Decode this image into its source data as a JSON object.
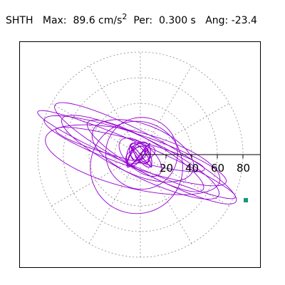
{
  "header": {
    "station": "SHTH",
    "max_label": "Max:",
    "max_value": "89.6 cm/s",
    "max_exp": "2",
    "per_label": "Per:",
    "per_value": "0.300 s",
    "ang_label": "Ang:",
    "ang_value": "-23.4"
  },
  "colors": {
    "trace": "#9400d3",
    "marker": "#109a7a",
    "grid": "#888888",
    "axis": "#000000"
  },
  "chart_data": {
    "type": "polar-hodogram",
    "title": "SHTH   Max:   89.6 cm/s2  Per:  0.300 s   Ang: -23.4",
    "radial_ticks": [
      20,
      40,
      60,
      80
    ],
    "tick_labels": [
      "20",
      "40",
      "60",
      "80"
    ],
    "rmax": 80,
    "grid": true,
    "angular_grid_step_deg": 30,
    "trace_loops": [
      {
        "ax": 84,
        "by": 9,
        "rot_deg": -23.4,
        "cx": -3,
        "cy": 0
      },
      {
        "ax": 75,
        "by": 13,
        "rot_deg": -19,
        "cx": -4,
        "cy": 3
      },
      {
        "ax": 68,
        "by": 15,
        "rot_deg": -26,
        "cx": 0,
        "cy": -2
      },
      {
        "ax": 60,
        "by": 8,
        "rot_deg": -15,
        "cx": -8,
        "cy": 4
      },
      {
        "ax": 52,
        "by": 12,
        "rot_deg": -30,
        "cx": 4,
        "cy": -1
      },
      {
        "ax": 42,
        "by": 20,
        "rot_deg": -22,
        "cx": 2,
        "cy": 3
      },
      {
        "ax": 28,
        "by": 28,
        "rot_deg": 0,
        "cx": 1,
        "cy": 1
      },
      {
        "ax": 36,
        "by": 36,
        "rot_deg": 0,
        "cx": -3,
        "cy": -10
      },
      {
        "ax": 20,
        "by": 10,
        "rot_deg": -40,
        "cx": 0,
        "cy": -2
      },
      {
        "ax": 12,
        "by": 6,
        "rot_deg": 20,
        "cx": 0,
        "cy": 0
      },
      {
        "ax": 70,
        "by": 22,
        "rot_deg": -14,
        "cx": -6,
        "cy": -4
      },
      {
        "ax": 80,
        "by": 14,
        "rot_deg": -28,
        "cx": 4,
        "cy": 1
      }
    ],
    "peak_point": {
      "r": 89.6,
      "angle_deg": -23.4
    }
  }
}
